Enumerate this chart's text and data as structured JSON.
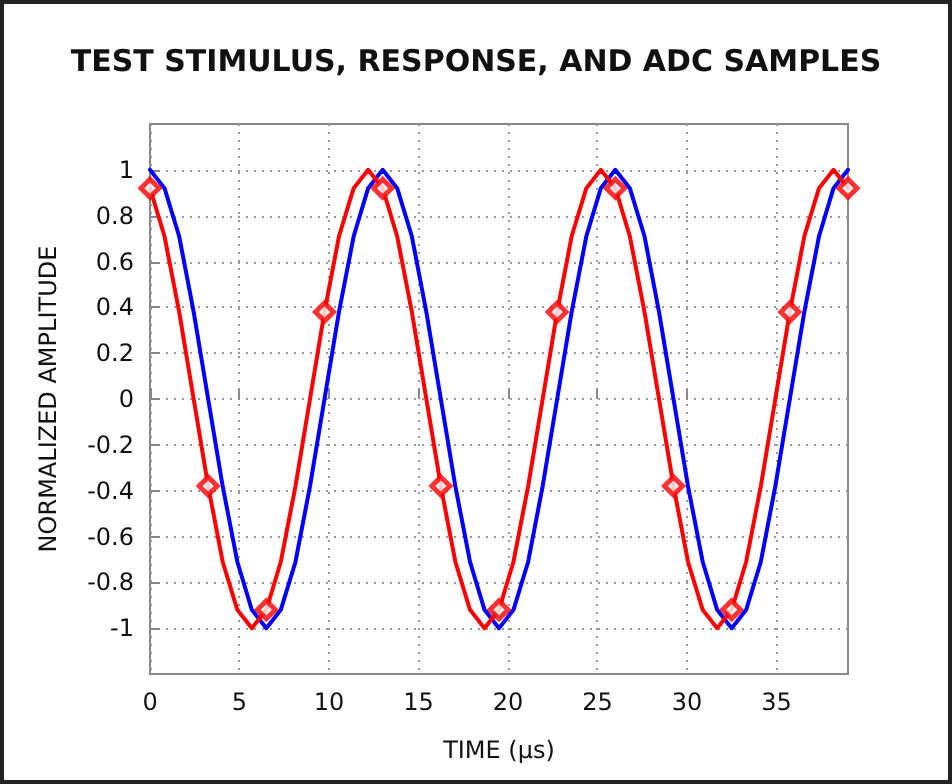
{
  "chart_data": {
    "type": "line",
    "title": "TEST STIMULUS, RESPONSE, AND ADC SAMPLES",
    "xlabel": "TIME (µs)",
    "ylabel": "NORMALIZED AMPLITUDE",
    "xlim": [
      0,
      39
    ],
    "xticks": [
      0,
      5,
      10,
      15,
      20,
      25,
      30,
      35
    ],
    "ylim": [
      -1.2,
      1.2
    ],
    "yticks": [
      -1,
      -0.8,
      -0.6,
      -0.4,
      -0.2,
      0,
      0.2,
      0.4,
      0.6,
      0.8,
      1
    ],
    "grid": true,
    "marker": "none",
    "line_style": "solid",
    "x": [
      0,
      0.81,
      1.63,
      2.44,
      3.25,
      4.06,
      4.88,
      5.69,
      6.5,
      7.31,
      8.13,
      8.94,
      9.75,
      10.56,
      11.38,
      12.19,
      13,
      13.81,
      14.63,
      15.44,
      16.25,
      17.06,
      17.88,
      18.69,
      19.5,
      20.31,
      21.13,
      21.94,
      22.75,
      23.56,
      24.38,
      25.19,
      26,
      26.81,
      27.63,
      28.44,
      29.25,
      30.06,
      30.88,
      31.69,
      32.5,
      33.31,
      34.13,
      34.94,
      35.75,
      36.56,
      37.38,
      38.19,
      39
    ],
    "series": [
      {
        "color": "#0000ff",
        "values": [
          1,
          0.92,
          0.71,
          0.38,
          0,
          -0.38,
          -0.71,
          -0.92,
          -1,
          -0.92,
          -0.71,
          -0.38,
          0,
          0.38,
          0.71,
          0.92,
          1,
          0.92,
          0.71,
          0.38,
          0,
          -0.38,
          -0.71,
          -0.92,
          -1,
          -0.92,
          -0.71,
          -0.38,
          0,
          0.38,
          0.71,
          0.92,
          1,
          0.92,
          0.71,
          0.38,
          0,
          -0.38,
          -0.71,
          -0.92,
          -1,
          -0.92,
          -0.71,
          -0.38,
          0,
          0.38,
          0.71,
          0.92,
          1
        ]
      },
      {
        "color": "#ff0000",
        "values": [
          0.92,
          0.71,
          0.38,
          0,
          -0.38,
          -0.71,
          -0.92,
          -1,
          -0.92,
          -0.71,
          -0.38,
          0,
          0.38,
          0.71,
          0.92,
          1,
          0.92,
          0.71,
          0.38,
          0,
          -0.38,
          -0.71,
          -0.92,
          -1,
          -0.92,
          -0.71,
          -0.38,
          0,
          0.38,
          0.71,
          0.92,
          1,
          0.92,
          0.71,
          0.38,
          0,
          -0.38,
          -0.71,
          -0.92,
          -1,
          -0.92,
          -0.71,
          -0.38,
          0,
          0.38,
          0.71,
          0.92,
          1,
          0.92
        ]
      },
      {
        "type": "scatter",
        "marker": "diamond",
        "color": "#ff0000",
        "x": [
          0,
          3.25,
          6.5,
          9.75,
          13,
          16.25,
          19.5,
          22.75,
          26,
          29.25,
          32.5,
          35.75,
          39
        ],
        "values": [
          0.92,
          -0.38,
          -0.92,
          0.38,
          0.92,
          -0.38,
          -0.92,
          0.38,
          0.92,
          -0.38,
          -0.92,
          0.38,
          0.92
        ]
      }
    ]
  }
}
